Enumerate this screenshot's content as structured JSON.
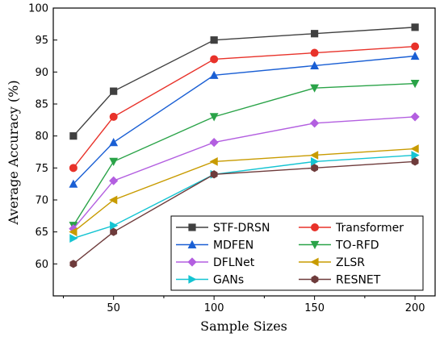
{
  "chart_data": {
    "type": "line",
    "xlabel": "Sample Sizes",
    "ylabel": "Average Accuracy (%)",
    "xlim": [
      20,
      210
    ],
    "ylim": [
      55,
      100
    ],
    "x": [
      30,
      50,
      100,
      150,
      200
    ],
    "x_ticks": [
      50,
      100,
      150,
      200
    ],
    "y_ticks": [
      60,
      65,
      70,
      75,
      80,
      85,
      90,
      95,
      100
    ],
    "grid": false,
    "legend_position": "bottom-right",
    "series": [
      {
        "name": "STF-DRSN",
        "color": "#404040",
        "marker": "square",
        "values": [
          80,
          87,
          95,
          96,
          97
        ]
      },
      {
        "name": "Transformer",
        "color": "#e8322a",
        "marker": "circle",
        "values": [
          75,
          83,
          92,
          93,
          94
        ]
      },
      {
        "name": "MDFEN",
        "color": "#1a5fd4",
        "marker": "triangle-up",
        "values": [
          72.5,
          79,
          89.5,
          91,
          92.5
        ]
      },
      {
        "name": "TO-RFD",
        "color": "#2aa348",
        "marker": "triangle-down",
        "values": [
          66,
          76,
          83,
          87.5,
          88.2
        ]
      },
      {
        "name": "DFLNet",
        "color": "#b35fe0",
        "marker": "diamond",
        "values": [
          65.5,
          73,
          79,
          82,
          83
        ]
      },
      {
        "name": "ZLSR",
        "color": "#c89b00",
        "marker": "triangle-left",
        "values": [
          65,
          70,
          76,
          77,
          78
        ]
      },
      {
        "name": "GANs",
        "color": "#14c4d2",
        "marker": "triangle-right",
        "values": [
          64,
          66,
          74,
          76,
          77
        ]
      },
      {
        "name": "RESNET",
        "color": "#6e3b3b",
        "marker": "hexagon",
        "values": [
          60,
          65,
          74,
          75,
          76
        ]
      }
    ]
  }
}
